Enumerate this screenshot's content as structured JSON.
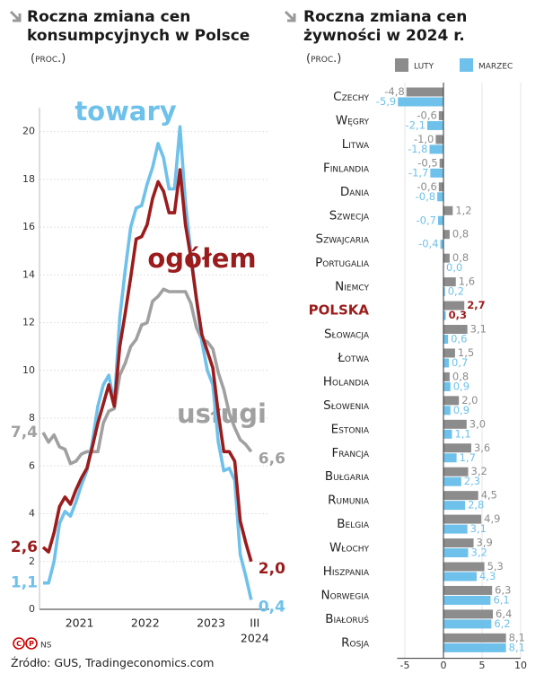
{
  "chart_data": [
    {
      "type": "line",
      "title": "Roczna zmiana cen konsumpcyjnych w Polsce",
      "subtitle": "(proc.)",
      "categories": [
        null,
        null,
        null,
        null,
        null,
        null,
        "2021",
        null,
        null,
        null,
        null,
        null,
        null,
        null,
        null,
        null,
        null,
        null,
        "2022",
        null,
        null,
        null,
        null,
        null,
        null,
        null,
        null,
        null,
        null,
        null,
        "2023",
        null,
        null,
        null,
        null,
        null,
        null,
        null,
        "III"
      ],
      "x_sublabel": "2024",
      "ylim": [
        0,
        21
      ],
      "yticks": [
        0,
        2,
        4,
        6,
        8,
        10,
        12,
        14,
        16,
        18,
        20
      ],
      "grid": true,
      "series": [
        {
          "name": "towary",
          "color": "#6ec1ea",
          "values": [
            1.1,
            1.1,
            2.0,
            3.6,
            4.1,
            3.9,
            4.5,
            5.2,
            5.8,
            7.0,
            8.5,
            9.4,
            9.8,
            8.6,
            12.2,
            14.2,
            16.0,
            16.8,
            16.9,
            17.8,
            18.5,
            19.5,
            18.9,
            17.6,
            17.6,
            20.2,
            17.0,
            14.9,
            13.0,
            11.2,
            10.0,
            9.4,
            7.0,
            5.8,
            5.9,
            5.4,
            2.3,
            1.4,
            0.4
          ],
          "value_labels": [
            "1,1",
            null,
            null,
            null,
            null,
            null,
            null,
            null,
            null,
            null,
            null,
            null,
            null,
            null,
            null,
            null,
            null,
            null,
            null,
            null,
            null,
            null,
            null,
            null,
            null,
            null,
            null,
            null,
            null,
            null,
            null,
            null,
            null,
            null,
            null,
            null,
            null,
            null,
            "0,4"
          ]
        },
        {
          "name": "ogółem",
          "color": "#9b1c1c",
          "values": [
            2.6,
            2.4,
            3.2,
            4.3,
            4.7,
            4.4,
            5.0,
            5.5,
            5.9,
            6.8,
            7.8,
            8.6,
            9.4,
            8.5,
            11.0,
            12.4,
            13.9,
            15.5,
            15.6,
            16.1,
            17.2,
            17.9,
            17.5,
            16.6,
            16.6,
            18.4,
            16.1,
            14.7,
            13.0,
            11.5,
            10.8,
            10.1,
            8.2,
            6.6,
            6.6,
            6.2,
            3.7,
            2.8,
            2.0
          ],
          "value_labels": [
            "2,6",
            null,
            null,
            null,
            null,
            null,
            null,
            null,
            null,
            null,
            null,
            null,
            null,
            null,
            null,
            null,
            null,
            null,
            null,
            null,
            null,
            null,
            null,
            null,
            null,
            null,
            null,
            null,
            null,
            null,
            null,
            null,
            null,
            null,
            null,
            null,
            null,
            null,
            "2,0"
          ]
        },
        {
          "name": "usługi",
          "color": "#a0a0a0",
          "values": [
            7.4,
            7.0,
            7.3,
            6.8,
            6.7,
            6.1,
            6.2,
            6.5,
            6.6,
            6.6,
            6.6,
            7.8,
            8.3,
            8.4,
            9.8,
            10.3,
            11.0,
            11.3,
            11.9,
            12.0,
            12.9,
            13.1,
            13.4,
            13.3,
            13.3,
            13.3,
            13.3,
            12.8,
            11.8,
            11.3,
            11.2,
            10.9,
            9.9,
            9.2,
            8.2,
            7.6,
            7.1,
            6.9,
            6.6
          ],
          "value_labels": [
            "7,4",
            null,
            null,
            null,
            null,
            null,
            null,
            null,
            null,
            null,
            null,
            null,
            null,
            null,
            null,
            null,
            null,
            null,
            null,
            null,
            null,
            null,
            null,
            null,
            null,
            null,
            null,
            null,
            null,
            null,
            null,
            null,
            null,
            null,
            null,
            null,
            null,
            null,
            "6,6"
          ]
        }
      ]
    },
    {
      "type": "bar",
      "orientation": "horizontal",
      "title": "Roczna zmiana cen żywności w 2024 r.",
      "subtitle": "(proc.)",
      "categories": [
        "Czechy",
        "Węgry",
        "Litwa",
        "Finlandia",
        "Dania",
        "Szwecja",
        "Szwajcaria",
        "Portugalia",
        "Niemcy",
        "POLSKA",
        "Słowacja",
        "Łotwa",
        "Holandia",
        "Słowenia",
        "Estonia",
        "Francja",
        "Bułgaria",
        "Rumunia",
        "Belgia",
        "Włochy",
        "Hiszpania",
        "Norwegia",
        "Białoruś",
        "Rosja"
      ],
      "highlight": {
        "index": 9,
        "color": "#9b1c1c"
      },
      "xlim": [
        -6,
        10
      ],
      "xticks": [
        -5,
        0,
        5,
        10
      ],
      "grid": true,
      "legend": "top-right",
      "series": [
        {
          "name": "luty",
          "color": "#8c8c8c",
          "values": [
            -4.8,
            -0.6,
            -1.0,
            -0.5,
            -0.6,
            1.2,
            0.8,
            0.8,
            1.6,
            2.7,
            3.1,
            1.5,
            0.8,
            2.0,
            3.0,
            3.6,
            3.2,
            4.5,
            4.9,
            3.9,
            5.3,
            6.3,
            6.4,
            8.1
          ],
          "value_labels": [
            "-4,8",
            "-0,6",
            "-1,0",
            "-0,5",
            "-0,6",
            "1,2",
            "0,8",
            "0,8",
            "1,6",
            "2,7",
            "3,1",
            "1,5",
            "0,8",
            "2,0",
            "3,0",
            "3,6",
            "3,2",
            "4,5",
            "4,9",
            "3,9",
            "5,3",
            "6,3",
            "6,4",
            "8,1"
          ]
        },
        {
          "name": "marzec",
          "color": "#6ec1ea",
          "values": [
            -5.9,
            -2.1,
            -1.8,
            -1.7,
            -0.8,
            -0.7,
            -0.4,
            0.0,
            0.2,
            0.3,
            0.6,
            0.7,
            0.9,
            0.9,
            1.1,
            1.7,
            2.3,
            2.8,
            3.1,
            3.2,
            4.3,
            6.1,
            6.2,
            8.1
          ],
          "value_labels": [
            "-5,9",
            "-2,1",
            "-1,8",
            "-1,7",
            "-0,8",
            "-0,7",
            "-0,4",
            "0,0",
            "0,2",
            "0,3",
            "0,6",
            "0,7",
            "0,9",
            "0,9",
            "1,1",
            "1,7",
            "2,3",
            "2,8",
            "3,1",
            "3,2",
            "4,3",
            "6,1",
            "6,2",
            "8,1"
          ]
        }
      ]
    }
  ],
  "footer": {
    "credit": "NS",
    "source": "Źródło: GUS, Tradingeconomics.com"
  }
}
